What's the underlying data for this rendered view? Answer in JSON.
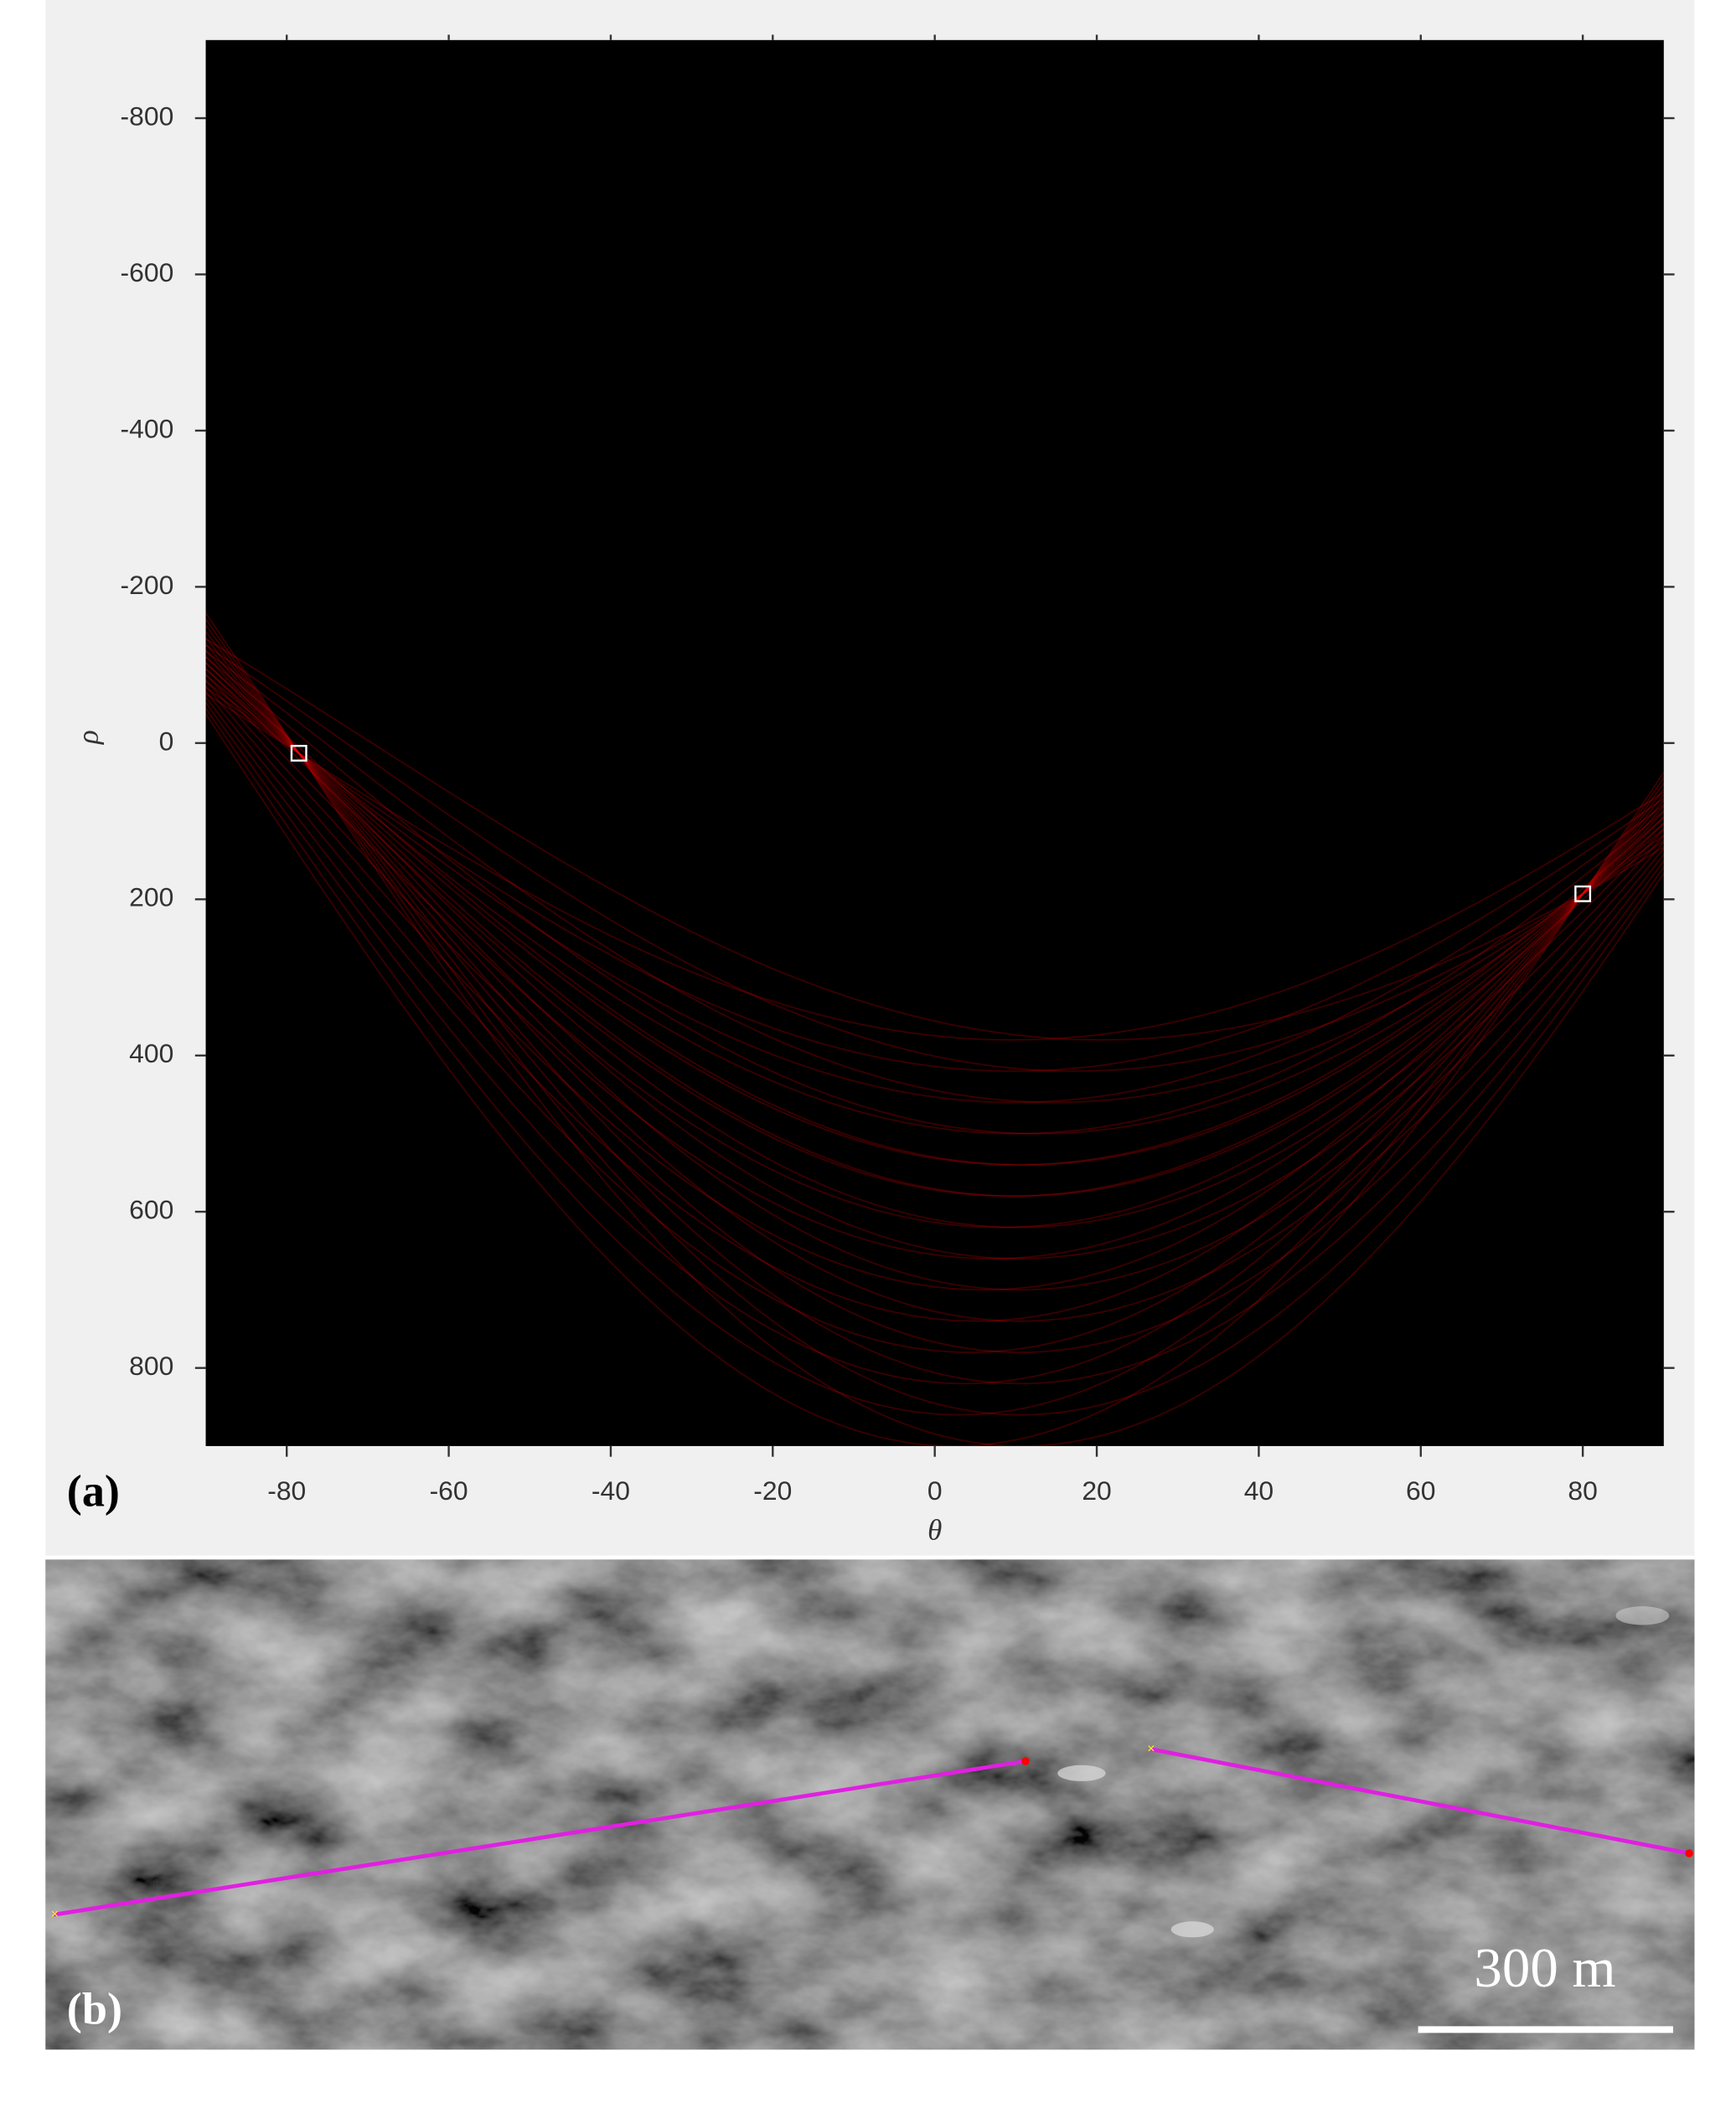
{
  "chart_data": {
    "type": "hough",
    "panel_label": "(a)",
    "xlabel": "θ",
    "ylabel": "ρ",
    "xlim": [
      -90,
      90
    ],
    "ylim": [
      -900,
      900
    ],
    "xticks": [
      -80,
      -60,
      -40,
      -20,
      0,
      20,
      40,
      60,
      80
    ],
    "yticks": [
      -800,
      -600,
      -400,
      -200,
      0,
      200,
      400,
      600,
      800
    ],
    "x": [
      -78.5,
      80
    ],
    "values": [
      13,
      193
    ],
    "color": "#ff0000"
  },
  "image_panel": {
    "panel_label": "(b)",
    "scale_bar": "300 m"
  }
}
